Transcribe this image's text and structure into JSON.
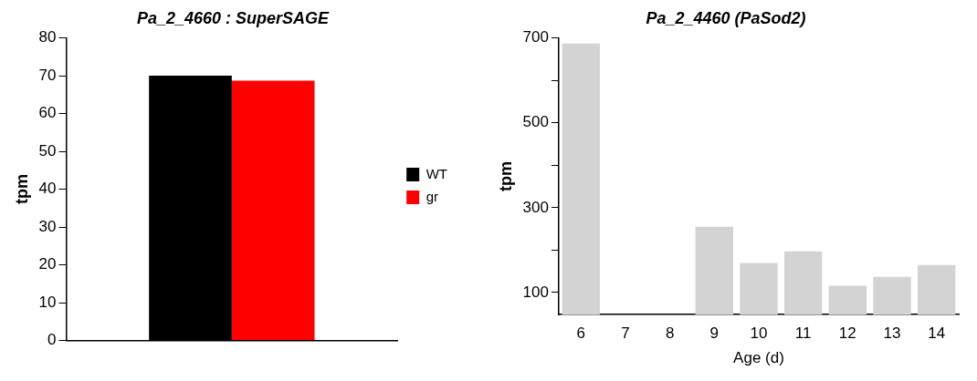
{
  "chart_data": [
    {
      "type": "bar",
      "title": "Pa_2_4660 : SuperSAGE",
      "ylabel": "tpm",
      "categories": [
        null
      ],
      "series": [
        {
          "name": "WT",
          "color": "#000000",
          "values": [
            70
          ]
        },
        {
          "name": "gr",
          "color": "#ff0000",
          "values": [
            68.7
          ]
        }
      ],
      "ylim": [
        0,
        80
      ],
      "yticks": [
        0,
        10,
        20,
        30,
        40,
        50,
        60,
        70,
        80
      ],
      "legend": "right",
      "grid": false
    },
    {
      "type": "bar",
      "title": "Pa_2_4460 (PaSod2)",
      "ylabel": "tpm",
      "xlabel": "Age (d)",
      "categories": [
        "6",
        "7",
        "8",
        "9",
        "10",
        "11",
        "12",
        "13",
        "14"
      ],
      "values": [
        687,
        null,
        null,
        255,
        170,
        197,
        116,
        137,
        165
      ],
      "color": "#d3d3d3",
      "ylim": [
        48,
        700
      ],
      "yticks": [
        100,
        {
          "value": 200,
          "label": null
        },
        300,
        {
          "value": 400,
          "label": null
        },
        500,
        {
          "value": 600,
          "label": null
        },
        700
      ],
      "grid": false
    }
  ]
}
